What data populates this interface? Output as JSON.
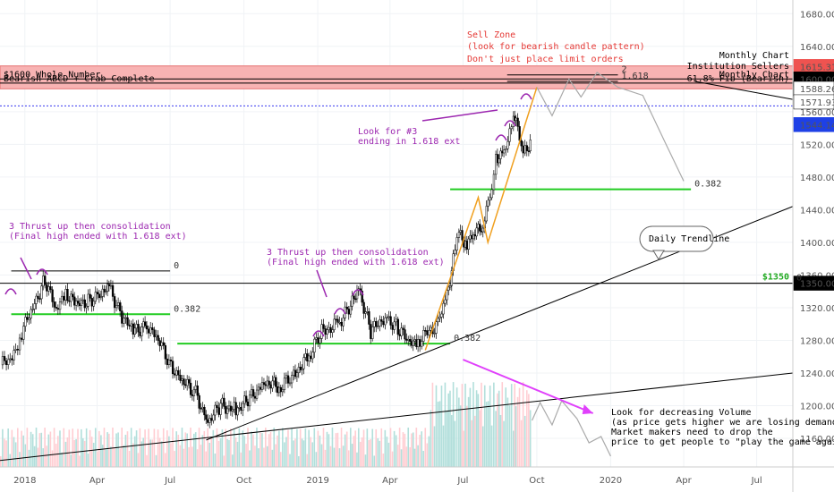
{
  "chart_data": {
    "type": "candlestick",
    "title": "",
    "y_axis": {
      "ticks": [
        1160,
        1200,
        1240,
        1280,
        1320,
        1360,
        1400,
        1440,
        1480,
        1520,
        1560,
        1600,
        1640,
        1680
      ],
      "ylim": [
        1125,
        1700
      ],
      "side": "right"
    },
    "x_axis": {
      "ticks": [
        {
          "label": "2018",
          "date": "2018-01-01"
        },
        {
          "label": "Apr",
          "date": "2018-04-01"
        },
        {
          "label": "Jul",
          "date": "2018-07-01"
        },
        {
          "label": "Oct",
          "date": "2018-10-01"
        },
        {
          "label": "2019",
          "date": "2019-01-01"
        },
        {
          "label": "Apr",
          "date": "2019-04-01"
        },
        {
          "label": "Jul",
          "date": "2019-07-01"
        },
        {
          "label": "Oct",
          "date": "2019-10-01"
        },
        {
          "label": "2020",
          "date": "2020-01-01"
        },
        {
          "label": "Apr",
          "date": "2020-04-01"
        },
        {
          "label": "Jul",
          "date": "2020-07-01"
        }
      ],
      "range": [
        "2017-12-01",
        "2020-08-15"
      ]
    },
    "price_path": [
      {
        "date": "2017-12-01",
        "close": 1250
      },
      {
        "date": "2017-12-15",
        "close": 1258
      },
      {
        "date": "2017-12-27",
        "close": 1290
      },
      {
        "date": "2018-01-10",
        "close": 1320
      },
      {
        "date": "2018-01-25",
        "close": 1355
      },
      {
        "date": "2018-02-08",
        "close": 1315
      },
      {
        "date": "2018-02-20",
        "close": 1340
      },
      {
        "date": "2018-03-05",
        "close": 1322
      },
      {
        "date": "2018-03-20",
        "close": 1330
      },
      {
        "date": "2018-04-05",
        "close": 1335
      },
      {
        "date": "2018-04-15",
        "close": 1345
      },
      {
        "date": "2018-05-01",
        "close": 1310
      },
      {
        "date": "2018-05-15",
        "close": 1290
      },
      {
        "date": "2018-06-01",
        "close": 1300
      },
      {
        "date": "2018-06-15",
        "close": 1280
      },
      {
        "date": "2018-07-01",
        "close": 1250
      },
      {
        "date": "2018-07-15",
        "close": 1230
      },
      {
        "date": "2018-08-01",
        "close": 1215
      },
      {
        "date": "2018-08-16",
        "close": 1180
      },
      {
        "date": "2018-09-01",
        "close": 1200
      },
      {
        "date": "2018-09-20",
        "close": 1195
      },
      {
        "date": "2018-10-05",
        "close": 1205
      },
      {
        "date": "2018-10-25",
        "close": 1230
      },
      {
        "date": "2018-11-15",
        "close": 1222
      },
      {
        "date": "2018-12-01",
        "close": 1238
      },
      {
        "date": "2018-12-20",
        "close": 1260
      },
      {
        "date": "2019-01-05",
        "close": 1290
      },
      {
        "date": "2019-01-25",
        "close": 1300
      },
      {
        "date": "2019-02-10",
        "close": 1320
      },
      {
        "date": "2019-02-20",
        "close": 1345
      },
      {
        "date": "2019-03-07",
        "close": 1290
      },
      {
        "date": "2019-03-25",
        "close": 1310
      },
      {
        "date": "2019-04-10",
        "close": 1295
      },
      {
        "date": "2019-04-25",
        "close": 1275
      },
      {
        "date": "2019-05-05",
        "close": 1280
      },
      {
        "date": "2019-05-30",
        "close": 1300
      },
      {
        "date": "2019-06-10",
        "close": 1335
      },
      {
        "date": "2019-06-20",
        "close": 1390
      },
      {
        "date": "2019-06-25",
        "close": 1410
      },
      {
        "date": "2019-07-05",
        "close": 1400
      },
      {
        "date": "2019-07-15",
        "close": 1410
      },
      {
        "date": "2019-07-25",
        "close": 1425
      },
      {
        "date": "2019-08-05",
        "close": 1465
      },
      {
        "date": "2019-08-10",
        "close": 1505
      },
      {
        "date": "2019-08-20",
        "close": 1510
      },
      {
        "date": "2019-09-01",
        "close": 1545
      },
      {
        "date": "2019-09-04",
        "close": 1552
      },
      {
        "date": "2019-09-13",
        "close": 1505
      },
      {
        "date": "2019-09-20",
        "close": 1518
      },
      {
        "date": "2019-09-24",
        "close": 1530
      }
    ],
    "volume_note": "volume bars at bottom of chart (red/green), increasing in mid-2019",
    "projection": [
      {
        "date": "2019-10-01",
        "value": 1590
      },
      {
        "date": "2019-10-20",
        "value": 1555
      },
      {
        "date": "2019-11-10",
        "value": 1600
      },
      {
        "date": "2019-11-25",
        "value": 1578
      },
      {
        "date": "2019-12-15",
        "value": 1608
      },
      {
        "date": "2020-01-10",
        "value": 1590
      },
      {
        "date": "2020-02-10",
        "value": 1580
      },
      {
        "date": "2020-03-10",
        "value": 1520
      },
      {
        "date": "2020-04-01",
        "value": 1475
      }
    ],
    "price_tags": [
      {
        "label": "1615.31",
        "value": 1615.31,
        "color": "#ef5350"
      },
      {
        "label": "1600.00",
        "value": 1600,
        "color": "#000000"
      },
      {
        "label": "1588.04",
        "value": 1588.04,
        "color": "#000000"
      },
      {
        "label": "1588.26",
        "value": 1588.26,
        "color": "#ffffff"
      },
      {
        "label": "1571.93",
        "value": 1571.93,
        "color": "#ffffff"
      },
      {
        "label": "1544.14",
        "value": 1544.14,
        "color": "#1e40e6"
      },
      {
        "label": "1350.00",
        "value": 1350,
        "color": "#000000"
      }
    ],
    "sell_zone": {
      "low": 1588,
      "high": 1616,
      "color": "#f8b3b3"
    },
    "levels": [
      {
        "label": "$1600 Whole Number",
        "value": 1600,
        "right_label": "Monthly Chart"
      },
      {
        "label": "Bearish ABCD + Crab Complete",
        "value": 1595,
        "right_label": "61.8% Fib (Bearish)"
      }
    ],
    "zone_title": {
      "line1": "Monthly Chart",
      "line2": "Institution Sellers"
    },
    "horizontal_lines": [
      {
        "value": 1350,
        "color": "#000000",
        "label": "$1350",
        "label_color": "#22aa22"
      },
      {
        "value": 1567,
        "color": "#3a3af0",
        "style": "dotted"
      }
    ],
    "fib_levels": [
      {
        "label": "0",
        "value": 1365,
        "start": "2017-12-15",
        "end": "2018-07-01"
      },
      {
        "label": "0.382",
        "value": 1312,
        "start": "2017-12-15",
        "end": "2018-07-01"
      },
      {
        "label": "0",
        "value": 1350,
        "start": "2019-06-20",
        "end": "2020-08-15"
      },
      {
        "label": "0.382",
        "value": 1276,
        "start": "2018-07-10",
        "end": "2019-06-15"
      },
      {
        "label": "0.382",
        "value": 1465,
        "start": "2019-06-15",
        "end": "2020-04-10"
      },
      {
        "label": "2",
        "value": 1605,
        "start": "2019-08-25",
        "end": "2020-01-10"
      },
      {
        "label": "1.618",
        "value": 1597,
        "start": "2019-08-25",
        "end": "2020-01-10"
      }
    ],
    "trendlines": [
      {
        "label": "Daily Trendline",
        "from": {
          "date": "2018-08-15",
          "value": 1158
        },
        "to": {
          "date": "2020-08-15",
          "value": 1444
        }
      },
      {
        "label": "",
        "from": {
          "date": "2017-12-01",
          "value": 1133
        },
        "to": {
          "date": "2020-08-15",
          "value": 1240
        }
      }
    ],
    "annotations": [
      {
        "text": "Sell Zone",
        "color": "#e53935"
      },
      {
        "text": "(look for bearish candle pattern)",
        "color": "#e53935"
      },
      {
        "text": "Don't just place limit orders",
        "color": "#e53935"
      },
      {
        "text": "Look for #3",
        "color": "#9c27b0"
      },
      {
        "text": "ending in 1.618 ext",
        "color": "#9c27b0"
      },
      {
        "text": "3 Thrust up then consolidation",
        "color": "#9c27b0"
      },
      {
        "text": "(Final high ended with 1.618 ext)",
        "color": "#9c27b0"
      },
      {
        "text": "3 Thrust up then consolidation",
        "color": "#9c27b0"
      },
      {
        "text": "(Final high ended with 1.618 ext)",
        "color": "#9c27b0"
      },
      {
        "text": "Daily Trendline",
        "color": "#000000"
      },
      {
        "text": "Look for decreasing Volume",
        "color": "#000000"
      },
      {
        "text": "(as price gets higher we are losing demand)",
        "color": "#000000"
      },
      {
        "text": "Market makers need to drop the",
        "color": "#000000"
      },
      {
        "text": "price to get people to \"play the game again\"",
        "color": "#000000"
      }
    ]
  }
}
